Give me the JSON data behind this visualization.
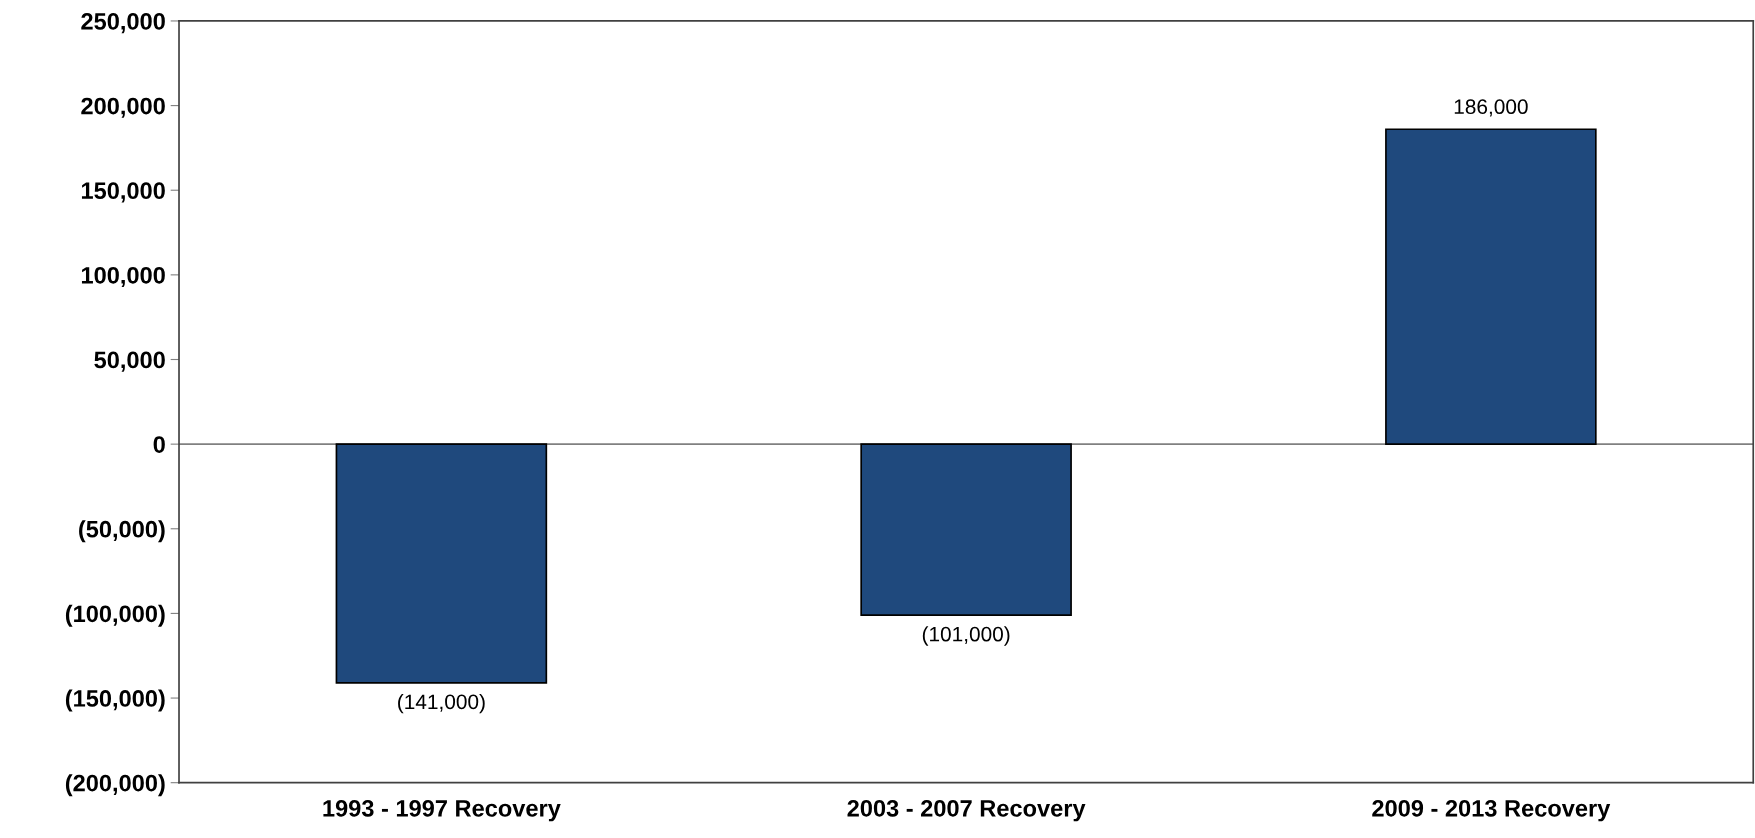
{
  "chart_data": {
    "type": "bar",
    "categories": [
      "1993 - 1997 Recovery",
      "2003 - 2007 Recovery",
      "2009 - 2013 Recovery"
    ],
    "values": [
      -141000,
      -101000,
      186000
    ],
    "color": "#1f497d",
    "value_labels": [
      "(141,000)",
      "(101,000)",
      "186,000"
    ],
    "ylim": [
      -200000,
      250000
    ],
    "yticks": [
      {
        "value": -200000,
        "label": "(200,000)"
      },
      {
        "value": -150000,
        "label": "(150,000)"
      },
      {
        "value": -100000,
        "label": "(100,000)"
      },
      {
        "value": -50000,
        "label": "(50,000)"
      },
      {
        "value": 0,
        "label": "0"
      },
      {
        "value": 50000,
        "label": "50,000"
      },
      {
        "value": 100000,
        "label": "100,000"
      },
      {
        "value": 150000,
        "label": "150,000"
      },
      {
        "value": 200000,
        "label": "200,000"
      },
      {
        "value": 250000,
        "label": "250,000"
      }
    ],
    "ref_lines": [
      {
        "axis": "y",
        "value": 0,
        "label": null,
        "color": "#808080"
      }
    ],
    "grid": false,
    "legend": false
  }
}
